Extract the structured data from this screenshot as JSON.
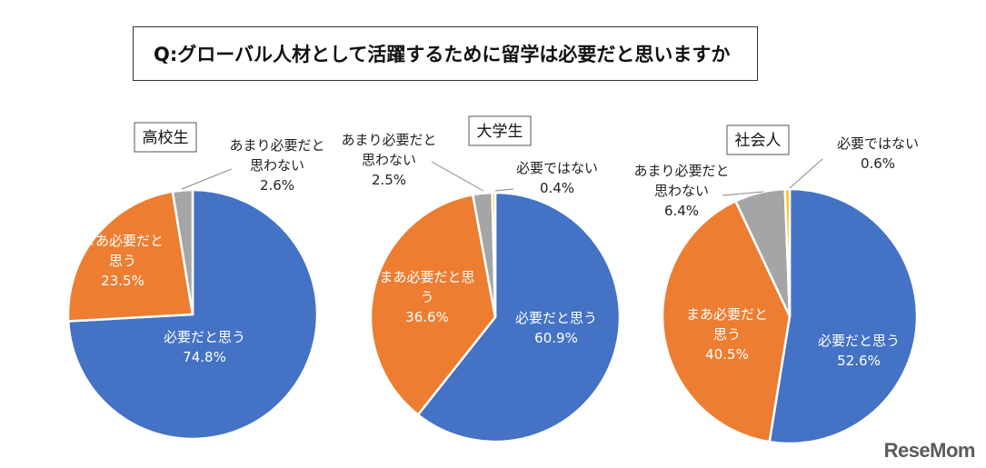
{
  "title": "Q:グローバル人材として活躍するために留学は必要だと思いますか",
  "logo_text": "ReseMom",
  "colors": {
    "必要だと思う": "#4472C4",
    "まあ必要だと思う": "#ED7D31",
    "あまり必要だと思わない": "#A5A5A5",
    "必要ではない": "#FFC000"
  },
  "chart_data": [
    {
      "type": "pie",
      "title": "高校生",
      "categories": [
        "必要だと思う",
        "まあ必要だと思う",
        "あまり必要だと思わない"
      ],
      "values": [
        74.8,
        23.5,
        2.6
      ],
      "labels": [
        {
          "lines": [
            "必要だと思う",
            "74.8%"
          ]
        },
        {
          "lines": [
            "まあ必要だと",
            "思う",
            "23.5%"
          ]
        },
        {
          "lines": [
            "あまり必要だと",
            "思わない",
            "2.6%"
          ]
        }
      ]
    },
    {
      "type": "pie",
      "title": "大学生",
      "categories": [
        "必要だと思う",
        "まあ必要だと思う",
        "あまり必要だと思わない",
        "必要ではない"
      ],
      "values": [
        60.9,
        36.6,
        2.5,
        0.4
      ],
      "labels": [
        {
          "lines": [
            "必要だと思う",
            "60.9%"
          ]
        },
        {
          "lines": [
            "まあ必要だと思",
            "う",
            "36.6%"
          ]
        },
        {
          "lines": [
            "あまり必要だと",
            "思わない",
            "2.5%"
          ]
        },
        {
          "lines": [
            "必要ではない",
            "0.4%"
          ]
        }
      ]
    },
    {
      "type": "pie",
      "title": "社会人",
      "categories": [
        "必要だと思う",
        "まあ必要だと思う",
        "あまり必要だと思わない",
        "必要ではない"
      ],
      "values": [
        52.6,
        40.5,
        6.4,
        0.6
      ],
      "labels": [
        {
          "lines": [
            "必要だと思う",
            "52.6%"
          ]
        },
        {
          "lines": [
            "まあ必要だと",
            "思う",
            "40.5%"
          ]
        },
        {
          "lines": [
            "あまり必要だと",
            "思わない",
            "6.4%"
          ]
        },
        {
          "lines": [
            "必要ではない",
            "0.6%"
          ]
        }
      ]
    }
  ]
}
